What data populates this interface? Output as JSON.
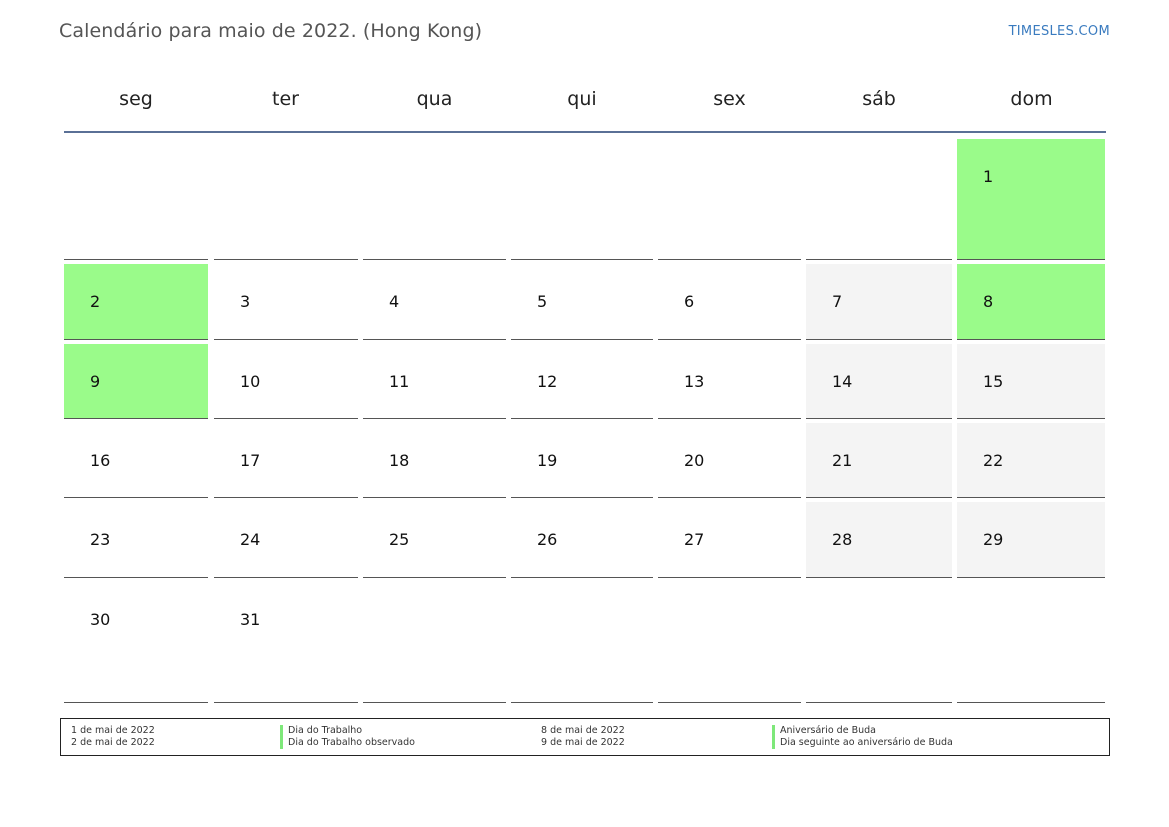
{
  "header": {
    "title": "Calendário para maio de 2022. (Hong Kong)",
    "brand": "TIMESLES.COM"
  },
  "calendar": {
    "weekdays": [
      "seg",
      "ter",
      "qua",
      "qui",
      "sex",
      "sáb",
      "dom"
    ],
    "weeks": [
      [
        null,
        null,
        null,
        null,
        null,
        null,
        1
      ],
      [
        2,
        3,
        4,
        5,
        6,
        7,
        8
      ],
      [
        9,
        10,
        11,
        12,
        13,
        14,
        15
      ],
      [
        16,
        17,
        18,
        19,
        20,
        21,
        22
      ],
      [
        23,
        24,
        25,
        26,
        27,
        28,
        29
      ],
      [
        30,
        31,
        null,
        null,
        null,
        null,
        null
      ]
    ],
    "holidays": [
      1,
      2,
      8,
      9
    ],
    "colors": {
      "holiday": "#9afb8a",
      "weekend": "#f4f4f4",
      "header_rule": "#5a7096",
      "brand": "#3a7bbf"
    }
  },
  "legend": {
    "left_dates": [
      "1 de mai de 2022",
      "2 de mai de 2022"
    ],
    "left_names": [
      "Dia do Trabalho",
      "Dia do Trabalho observado"
    ],
    "right_dates": [
      "8 de mai de 2022",
      "9 de mai de 2022"
    ],
    "right_names": [
      "Aniversário de Buda",
      "Dia seguinte ao aniversário de Buda"
    ]
  }
}
